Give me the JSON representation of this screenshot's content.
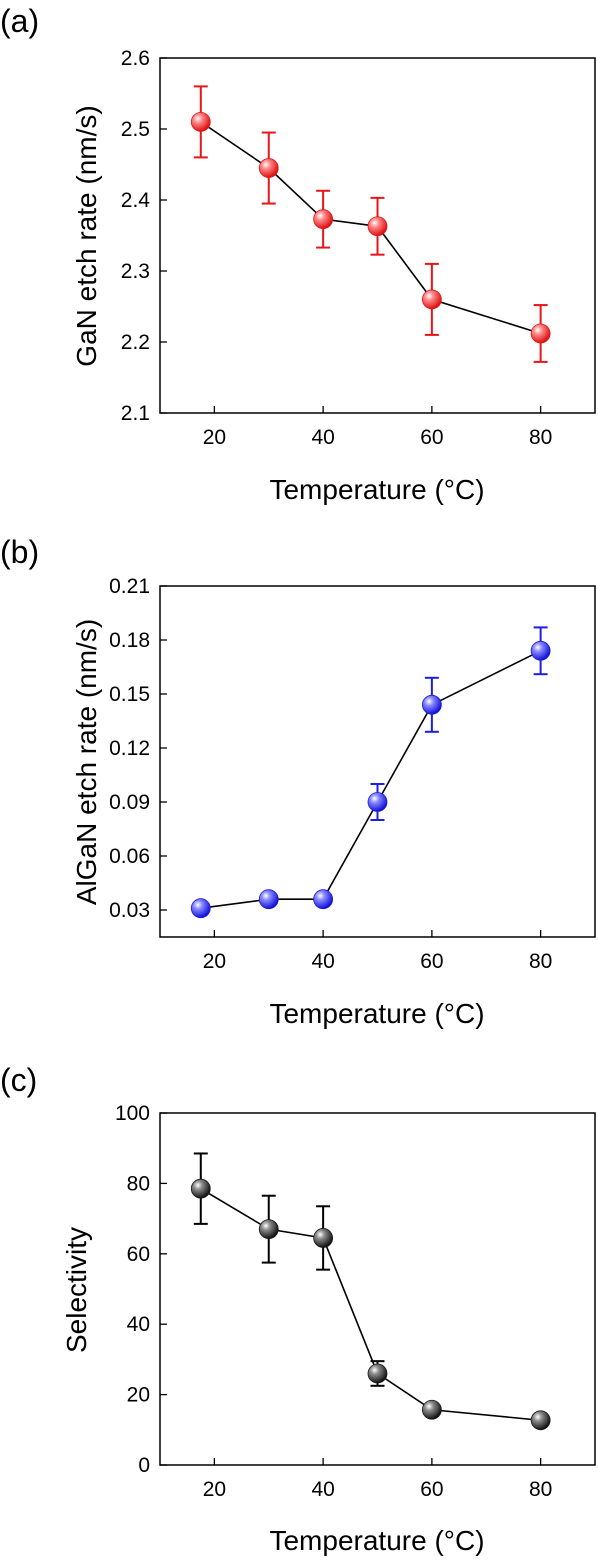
{
  "chart_data": [
    {
      "type": "line",
      "panel_label": "(a)",
      "xlabel": "Temperature (°C)",
      "ylabel": "GaN etch rate (nm/s)",
      "xlim": [
        10,
        90
      ],
      "ylim": [
        2.1,
        2.6
      ],
      "xticks": [
        "20",
        "40",
        "60",
        "80"
      ],
      "yticks": [
        "2.1",
        "2.2",
        "2.3",
        "2.4",
        "2.5",
        "2.6"
      ],
      "marker_color": "#e8141a",
      "error_color": "#e8141a",
      "series": [
        {
          "x": [
            17.5,
            30,
            40,
            50,
            60,
            80
          ],
          "y": [
            2.51,
            2.445,
            2.373,
            2.363,
            2.26,
            2.212
          ],
          "error": [
            0.05,
            0.05,
            0.04,
            0.04,
            0.05,
            0.04
          ]
        }
      ]
    },
    {
      "type": "line",
      "panel_label": "(b)",
      "xlabel": "Temperature (°C)",
      "ylabel": "AlGaN etch rate (nm/s)",
      "xlim": [
        10,
        90
      ],
      "ylim": [
        0.015,
        0.21
      ],
      "xticks": [
        "20",
        "40",
        "60",
        "80"
      ],
      "yticks": [
        "0.03",
        "0.06",
        "0.09",
        "0.12",
        "0.15",
        "0.18",
        "0.21"
      ],
      "marker_color": "#1d1ee0",
      "error_color": "#1d1ee0",
      "series": [
        {
          "x": [
            17.5,
            30,
            40,
            50,
            60,
            80
          ],
          "y": [
            0.031,
            0.036,
            0.036,
            0.09,
            0.144,
            0.174
          ],
          "error": [
            0.003,
            0.003,
            0.003,
            0.01,
            0.015,
            0.013
          ]
        }
      ]
    },
    {
      "type": "line",
      "panel_label": "(c)",
      "xlabel": "Temperature (°C)",
      "ylabel": "Selectivity",
      "xlim": [
        10,
        90
      ],
      "ylim": [
        0,
        100
      ],
      "xticks": [
        "20",
        "40",
        "60",
        "80"
      ],
      "yticks": [
        "0",
        "20",
        "40",
        "60",
        "80",
        "100"
      ],
      "marker_color": "#1a1a1a",
      "error_color": "#000000",
      "series": [
        {
          "x": [
            17.5,
            30,
            40,
            50,
            60,
            80
          ],
          "y": [
            78.5,
            67,
            64.5,
            26,
            15.7,
            12.7
          ],
          "error": [
            10,
            9.5,
            9,
            3.5,
            1.5,
            1
          ]
        }
      ]
    }
  ]
}
